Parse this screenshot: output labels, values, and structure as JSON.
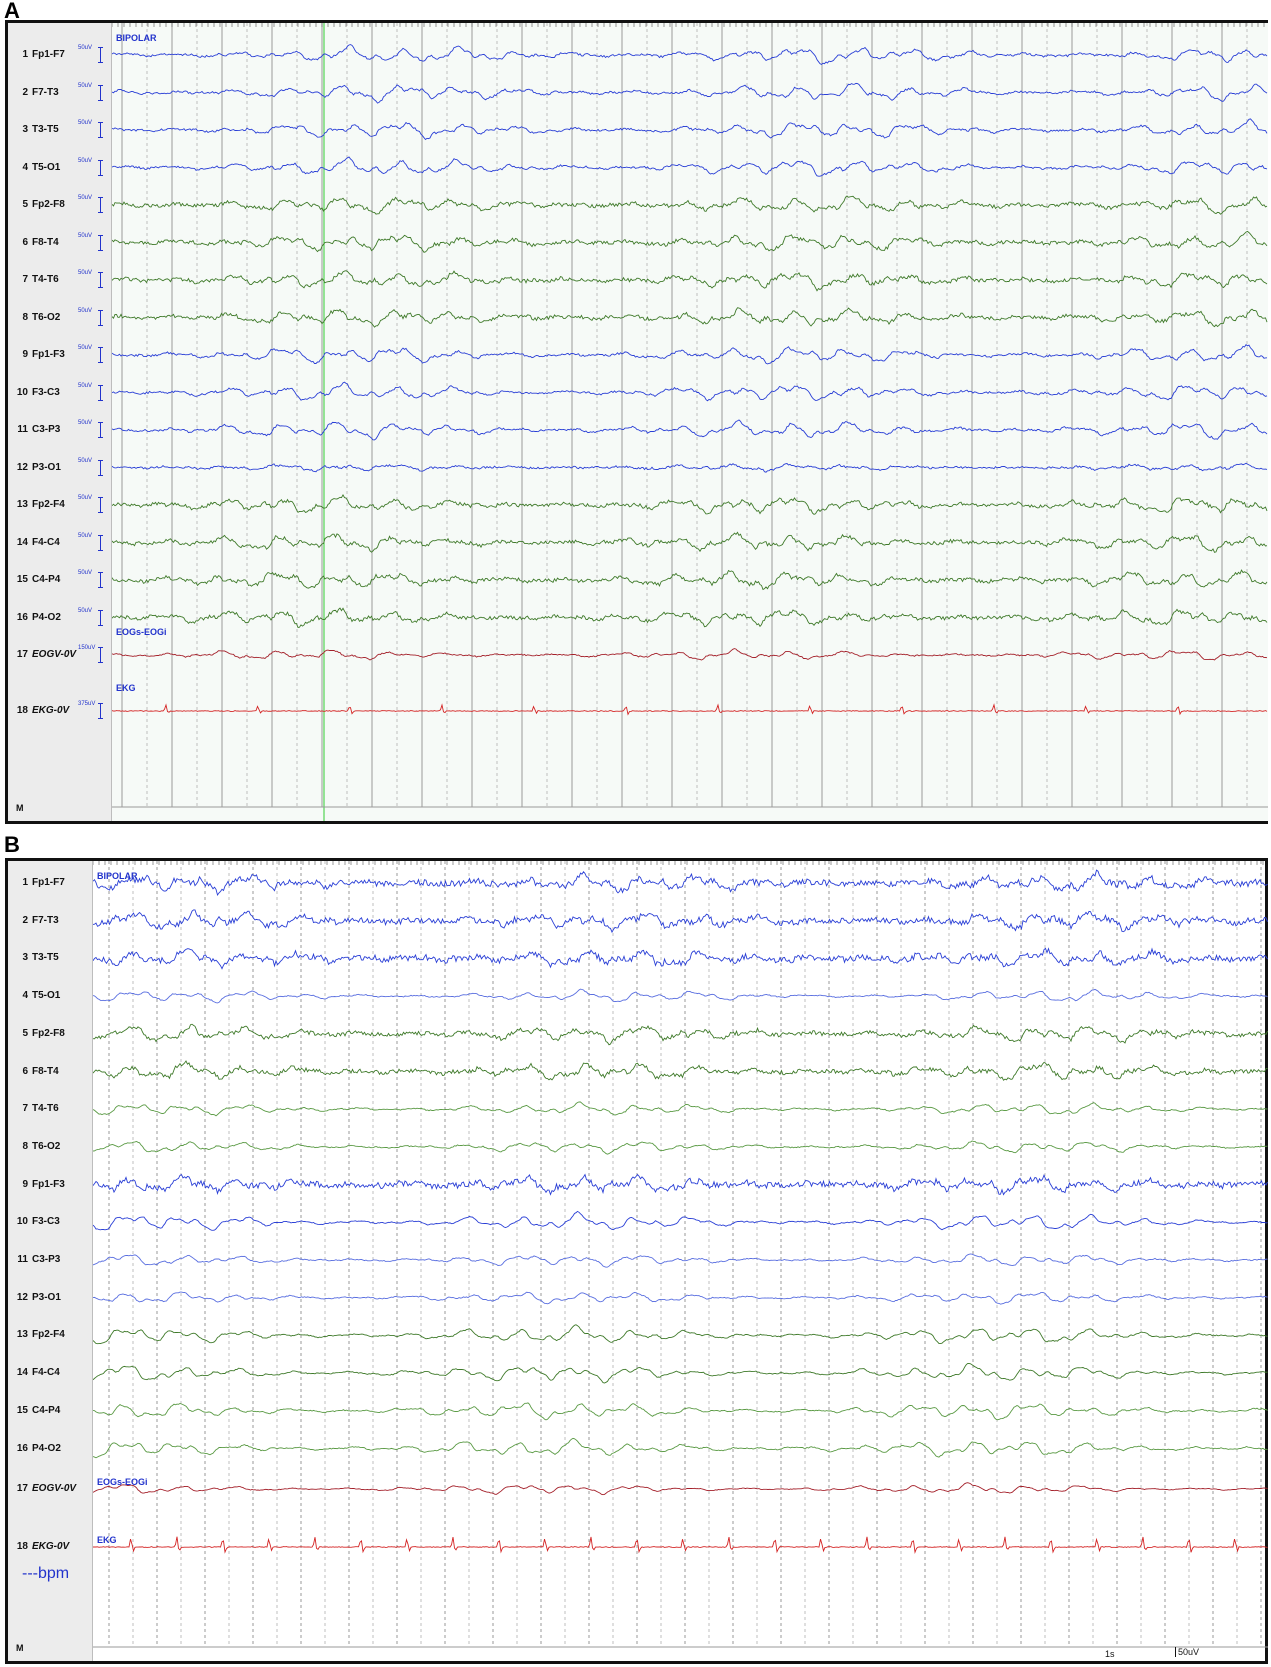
{
  "panels": [
    {
      "letter": "A",
      "montage_label": "BIPOLAR",
      "channels": [
        {
          "num": "1",
          "name": "Fp1-F7",
          "scale": "50uV",
          "color": "#2a3fd6"
        },
        {
          "num": "2",
          "name": "F7-T3",
          "scale": "50uV",
          "color": "#2a3fd6"
        },
        {
          "num": "3",
          "name": "T3-T5",
          "scale": "50uV",
          "color": "#2a3fd6"
        },
        {
          "num": "4",
          "name": "T5-O1",
          "scale": "50uV",
          "color": "#2a3fd6"
        },
        {
          "num": "5",
          "name": "Fp2-F8",
          "scale": "50uV",
          "color": "#3f7a2a"
        },
        {
          "num": "6",
          "name": "F8-T4",
          "scale": "50uV",
          "color": "#3f7a2a"
        },
        {
          "num": "7",
          "name": "T4-T6",
          "scale": "50uV",
          "color": "#3f7a2a"
        },
        {
          "num": "8",
          "name": "T6-O2",
          "scale": "50uV",
          "color": "#3f7a2a"
        },
        {
          "num": "9",
          "name": "Fp1-F3",
          "scale": "50uV",
          "color": "#2a3fd6"
        },
        {
          "num": "10",
          "name": "F3-C3",
          "scale": "50uV",
          "color": "#2a3fd6"
        },
        {
          "num": "11",
          "name": "C3-P3",
          "scale": "50uV",
          "color": "#2a3fd6"
        },
        {
          "num": "12",
          "name": "P3-O1",
          "scale": "50uV",
          "color": "#2a3fd6"
        },
        {
          "num": "13",
          "name": "Fp2-F4",
          "scale": "50uV",
          "color": "#3f7a2a"
        },
        {
          "num": "14",
          "name": "F4-C4",
          "scale": "50uV",
          "color": "#3f7a2a"
        },
        {
          "num": "15",
          "name": "C4-P4",
          "scale": "50uV",
          "color": "#3f7a2a"
        },
        {
          "num": "16",
          "name": "P4-O2",
          "scale": "50uV",
          "color": "#3f7a2a"
        },
        {
          "num": "17",
          "name": "EOGV-0V",
          "scale": "150uV",
          "color": "#a4202a",
          "italic": true,
          "sublabel": "EOGs-EOGi"
        },
        {
          "num": "18",
          "name": "EKG-0V",
          "scale": "375uV",
          "color": "#d42424",
          "italic": true,
          "sublabel": "EKG"
        }
      ],
      "marker_label": "M"
    },
    {
      "letter": "B",
      "montage_label": "BIPOLAR",
      "channels": [
        {
          "num": "1",
          "name": "Fp1-F7",
          "color": "#2a3fd6"
        },
        {
          "num": "2",
          "name": "F7-T3",
          "color": "#2a3fd6"
        },
        {
          "num": "3",
          "name": "T3-T5",
          "color": "#2a3fd6"
        },
        {
          "num": "4",
          "name": "T5-O1",
          "color": "#5a6fe0"
        },
        {
          "num": "5",
          "name": "Fp2-F8",
          "color": "#3f7a2a"
        },
        {
          "num": "6",
          "name": "F8-T4",
          "color": "#3f7a2a"
        },
        {
          "num": "7",
          "name": "T4-T6",
          "color": "#5a9a44"
        },
        {
          "num": "8",
          "name": "T6-O2",
          "color": "#5a9a44"
        },
        {
          "num": "9",
          "name": "Fp1-F3",
          "color": "#2a3fd6"
        },
        {
          "num": "10",
          "name": "F3-C3",
          "color": "#2a3fd6"
        },
        {
          "num": "11",
          "name": "C3-P3",
          "color": "#5a6fe0"
        },
        {
          "num": "12",
          "name": "P3-O1",
          "color": "#5a6fe0"
        },
        {
          "num": "13",
          "name": "Fp2-F4",
          "color": "#3f7a2a"
        },
        {
          "num": "14",
          "name": "F4-C4",
          "color": "#3f7a2a"
        },
        {
          "num": "15",
          "name": "C4-P4",
          "color": "#5a9a44"
        },
        {
          "num": "16",
          "name": "P4-O2",
          "color": "#5a9a44"
        },
        {
          "num": "17",
          "name": "EOGV-0V",
          "color": "#a4202a",
          "italic": true,
          "sublabel": "EOGs-EOGi"
        },
        {
          "num": "18",
          "name": "EKG-0V",
          "color": "#d42424",
          "italic": true,
          "sublabel": "EKG"
        }
      ],
      "marker_label": "M",
      "heart_rate": "---bpm",
      "time_scale": "1s",
      "amp_scale": "50uV"
    }
  ]
}
